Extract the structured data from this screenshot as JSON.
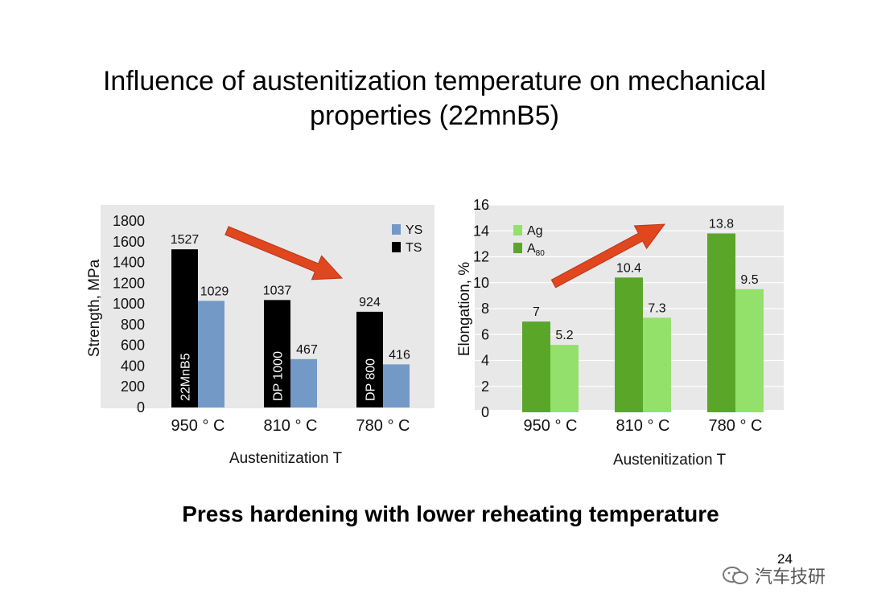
{
  "slide": {
    "title_line1": "Influence of austenitization temperature on mechanical",
    "title_line2": "properties (22mnB5)",
    "subtitle": "Press hardening with lower reheating temperature",
    "page_number": "24",
    "watermark": "汽车技研"
  },
  "chart_data": [
    {
      "type": "bar",
      "title": "",
      "xlabel": "Austenitization T",
      "ylabel": "Strength, MPa",
      "ylim": [
        0,
        1800
      ],
      "yticks": [
        0,
        200,
        400,
        600,
        800,
        1000,
        1200,
        1400,
        1600,
        1800
      ],
      "grid": false,
      "legend_position": "top-right",
      "categories": [
        "950 ° C",
        "810 ° C",
        "780 ° C"
      ],
      "series": [
        {
          "name": "TS",
          "color": "#000000",
          "values": [
            1527,
            1037,
            924
          ],
          "bar_labels": [
            "22MnB5",
            "DP 1000",
            "DP 800"
          ]
        },
        {
          "name": "YS",
          "color": "#7399c6",
          "values": [
            1029,
            467,
            416
          ]
        }
      ],
      "legend_order": [
        "YS",
        "TS"
      ],
      "annotation": "arrow-down-right"
    },
    {
      "type": "bar",
      "title": "",
      "xlabel": "Austenitization T",
      "ylabel": "Elongation, %",
      "ylim": [
        0,
        16
      ],
      "yticks": [
        0,
        2,
        4,
        6,
        8,
        10,
        12,
        14,
        16
      ],
      "grid": true,
      "legend_position": "top-left",
      "categories": [
        "950 ° C",
        "810 ° C",
        "780 ° C"
      ],
      "series": [
        {
          "name": "A80",
          "color": "#5aa629",
          "values": [
            7,
            10.4,
            13.8
          ]
        },
        {
          "name": "Ag",
          "color": "#93e06b",
          "values": [
            5.2,
            7.3,
            9.5
          ]
        }
      ],
      "legend_order": [
        "Ag",
        "A80"
      ],
      "annotation": "arrow-up-right"
    }
  ]
}
